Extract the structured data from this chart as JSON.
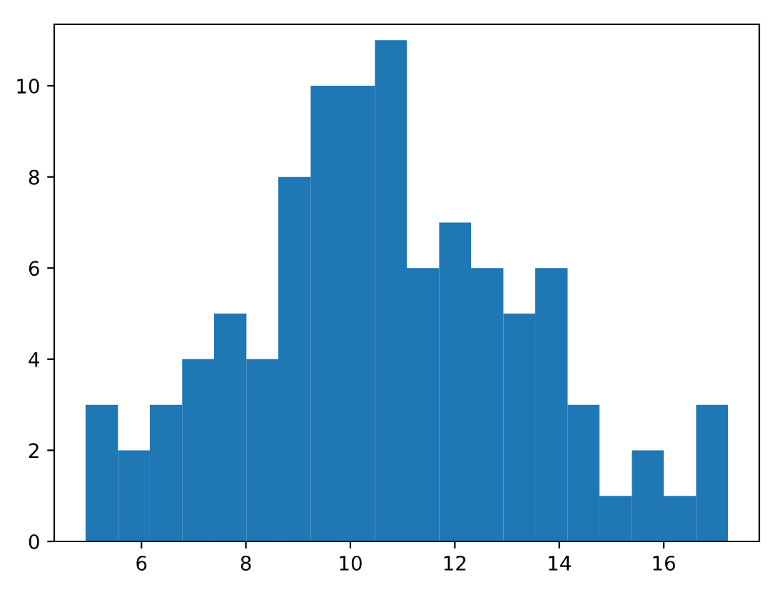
{
  "chart_data": {
    "type": "histogram",
    "bins": [
      4.93,
      5.55,
      6.16,
      6.78,
      7.39,
      8.01,
      8.62,
      9.24,
      9.85,
      10.47,
      11.08,
      11.7,
      12.31,
      12.93,
      13.54,
      14.16,
      14.77,
      15.39,
      16.0,
      16.62,
      17.23
    ],
    "values": [
      3,
      2,
      3,
      4,
      5,
      4,
      8,
      10,
      10,
      11,
      6,
      7,
      6,
      5,
      6,
      3,
      1,
      2,
      1,
      3
    ],
    "color": "#1f77b4",
    "xlim": [
      4.33,
      17.83
    ],
    "xticks": [
      6,
      8,
      10,
      12,
      14,
      16
    ],
    "ylim": [
      0,
      11.35
    ],
    "yticks": [
      0,
      2,
      4,
      6,
      8,
      10
    ],
    "grid": false
  }
}
